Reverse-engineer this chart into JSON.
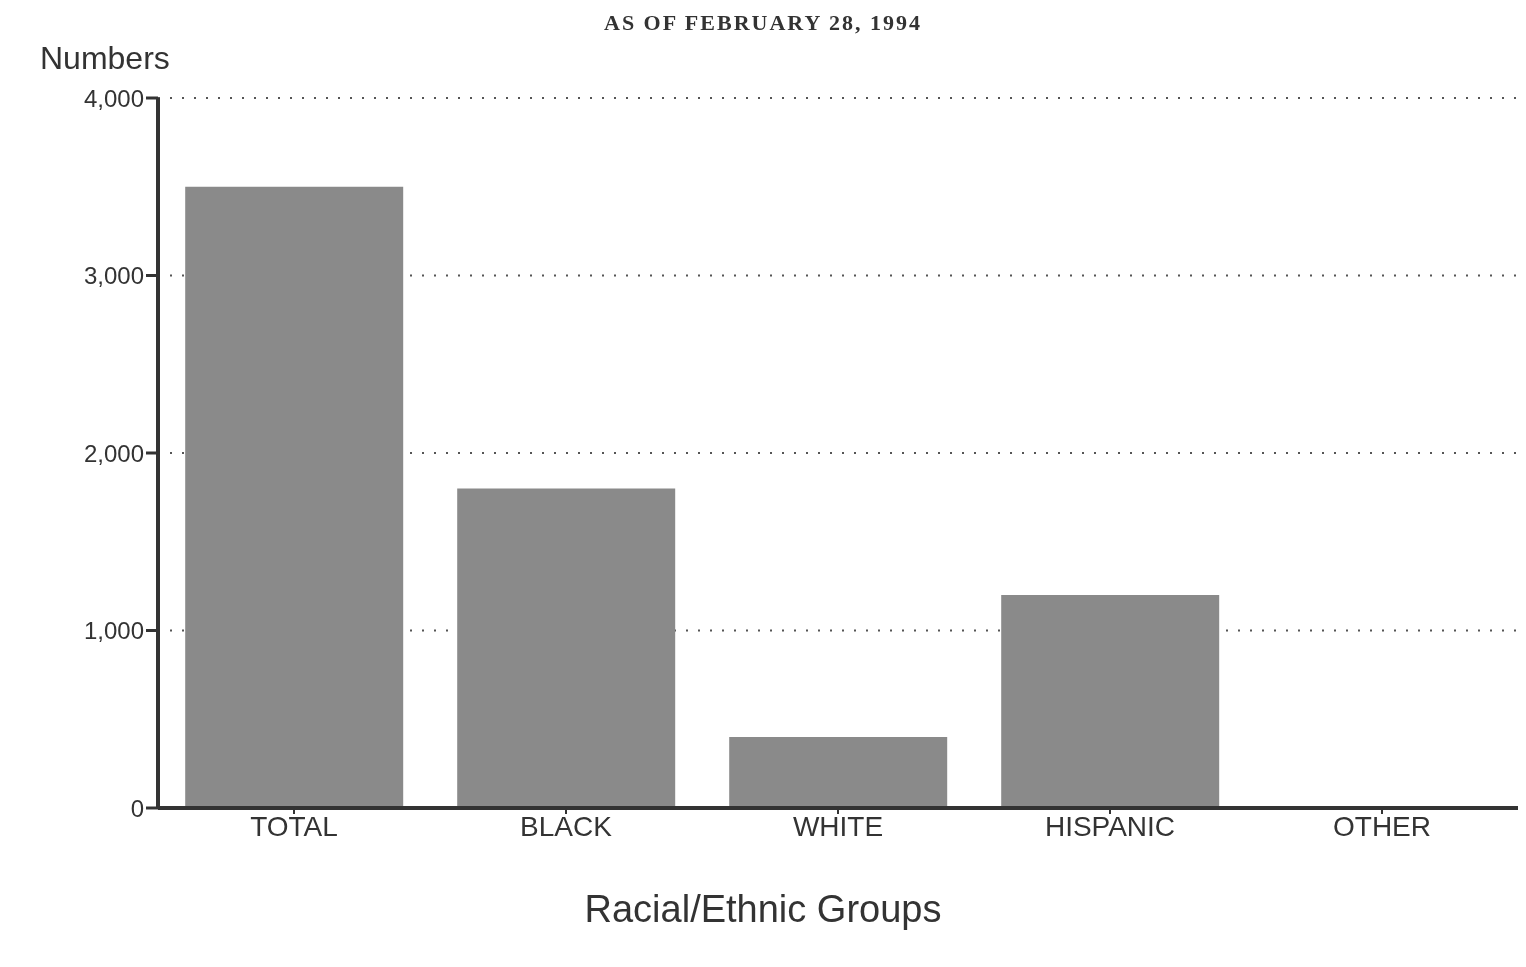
{
  "chart_data": {
    "type": "bar",
    "title": "AS OF FEBRUARY 28, 1994",
    "ylabel": "Numbers",
    "xlabel": "Racial/Ethnic Groups",
    "categories": [
      "TOTAL",
      "BLACK",
      "WHITE",
      "HISPANIC",
      "OTHER"
    ],
    "values": [
      3500,
      1800,
      400,
      1200,
      0
    ],
    "color": "#8a8a8a",
    "ylim": [
      0,
      4000
    ],
    "yticks": [
      {
        "value": 0,
        "label": "0"
      },
      {
        "value": 1000,
        "label": "1,000"
      },
      {
        "value": 2000,
        "label": "2,000"
      },
      {
        "value": 3000,
        "label": "3,000"
      },
      {
        "value": 4000,
        "label": "4,000"
      }
    ],
    "grid": "y",
    "line_style": "dotted"
  }
}
